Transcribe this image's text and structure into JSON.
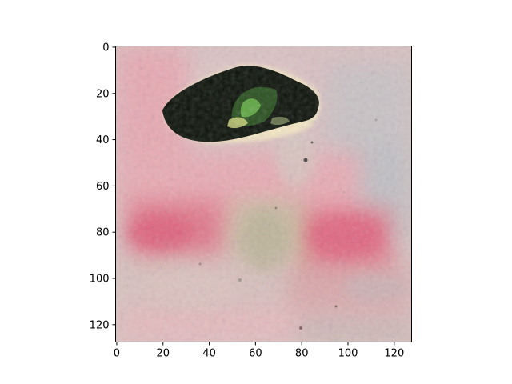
{
  "axes": {
    "xticks": [
      0,
      20,
      40,
      60,
      80,
      100,
      120
    ],
    "yticks": [
      0,
      20,
      40,
      60,
      80,
      100,
      120
    ],
    "xlim": [
      -0.5,
      127.5
    ],
    "ylim": [
      127.5,
      -0.5
    ],
    "image_size": [
      128,
      128
    ]
  },
  "image": {
    "subject": "dark green-black blob over a blurred pink, gray and beige background",
    "palette": {
      "background_pink": "#e7a3ad",
      "background_gray": "#c9bfbf",
      "background_beige": "#ded0bf",
      "magenta_patch": "#e1647e",
      "blob_dark": "#0c120a",
      "blob_green": "#4fa23f",
      "blob_highlight": "#f4ecc3"
    }
  }
}
